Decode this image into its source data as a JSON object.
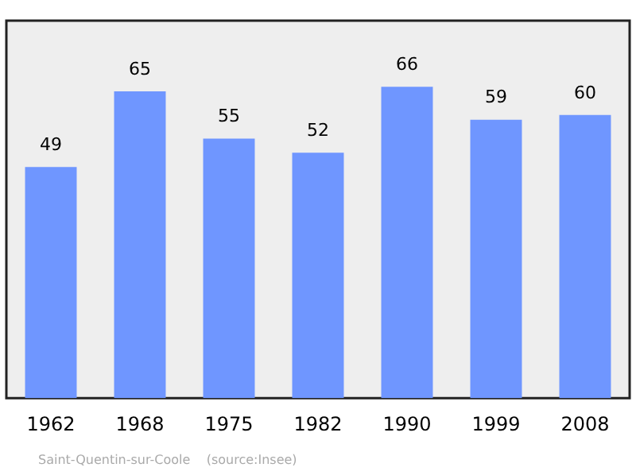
{
  "chart_data": {
    "type": "bar",
    "categories": [
      "1962",
      "1968",
      "1975",
      "1982",
      "1990",
      "1999",
      "2008"
    ],
    "values": [
      49,
      65,
      55,
      52,
      66,
      59,
      60
    ],
    "color": "#6f96ff",
    "data_labels": true,
    "legend": false,
    "annotations": [
      "Saint-Quentin-sur-Coole    (source:Insee)"
    ]
  }
}
